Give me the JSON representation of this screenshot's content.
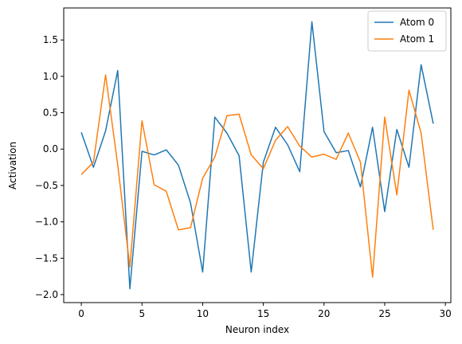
{
  "chart_data": {
    "type": "line",
    "title": "",
    "xlabel": "Neuron index",
    "ylabel": "Activation",
    "xlim": [
      -1.45,
      30.45
    ],
    "ylim": [
      -2.11,
      1.94
    ],
    "xticks": [
      0,
      5,
      10,
      15,
      20,
      25,
      30
    ],
    "yticks": [
      -2.0,
      -1.5,
      -1.0,
      -0.5,
      0.0,
      0.5,
      1.0,
      1.5
    ],
    "grid": false,
    "legend_position": "top-right",
    "x": [
      0,
      1,
      2,
      3,
      4,
      5,
      6,
      7,
      8,
      9,
      10,
      11,
      12,
      13,
      14,
      15,
      16,
      17,
      18,
      19,
      20,
      21,
      22,
      23,
      24,
      25,
      26,
      27,
      28,
      29
    ],
    "series": [
      {
        "name": "Atom 0",
        "color": "#1f77b4",
        "values": [
          0.23,
          -0.25,
          0.25,
          1.08,
          -1.92,
          -0.03,
          -0.08,
          -0.01,
          -0.22,
          -0.74,
          -1.69,
          0.44,
          0.22,
          -0.09,
          -1.69,
          -0.18,
          0.3,
          0.06,
          -0.31,
          1.75,
          0.24,
          -0.05,
          -0.02,
          -0.52,
          0.3,
          -0.86,
          0.27,
          -0.25,
          1.16,
          0.35
        ]
      },
      {
        "name": "Atom 1",
        "color": "#ff7f0e",
        "values": [
          -0.35,
          -0.18,
          1.02,
          -0.22,
          -1.62,
          0.39,
          -0.49,
          -0.58,
          -1.11,
          -1.08,
          -0.4,
          -0.11,
          0.46,
          0.48,
          -0.08,
          -0.27,
          0.12,
          0.31,
          0.04,
          -0.11,
          -0.07,
          -0.14,
          0.22,
          -0.18,
          -1.76,
          0.44,
          -0.63,
          0.81,
          0.22,
          -1.11
        ]
      }
    ]
  }
}
